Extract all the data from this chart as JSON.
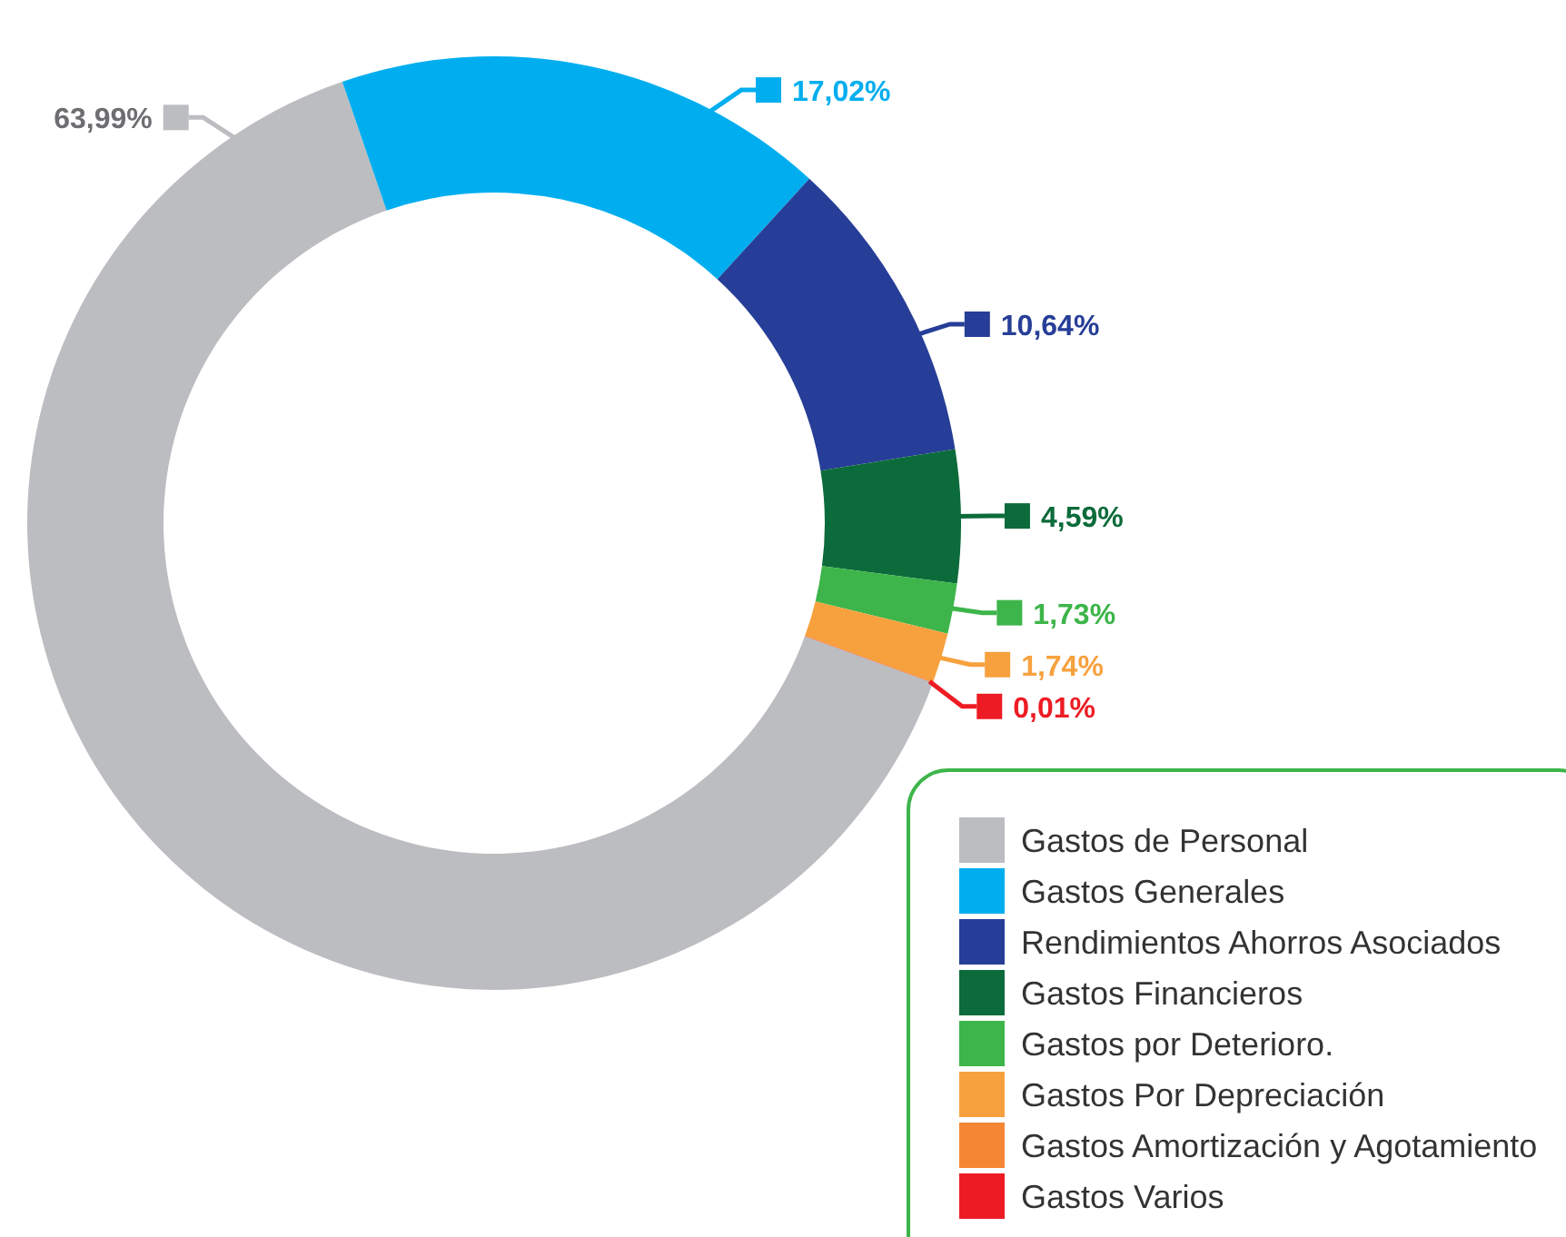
{
  "chart_data": {
    "type": "donut",
    "categories": [
      "Gastos de Personal",
      "Gastos Generales",
      "Rendimientos Ahorros Asociados",
      "Gastos Financieros",
      "Gastos por Deterioro.",
      "Gastos Por Depreciación",
      "Gastos Amortización y Agotamiento",
      "Gastos Varios"
    ],
    "values": [
      63.99,
      17.02,
      10.64,
      4.59,
      1.73,
      1.74,
      null,
      0.01
    ],
    "value_labels": [
      "63,99%",
      "17,02%",
      "10,64%",
      "4,59%",
      "1,73%",
      "1,74%",
      null,
      "0,01%"
    ],
    "colors": [
      "#bcbdc0",
      "#00aeef",
      "#263e97",
      "#0c6b3a",
      "#3db54a",
      "#f7a13e",
      "#f58634",
      "#ed1c24"
    ],
    "legend": "bottom right"
  }
}
